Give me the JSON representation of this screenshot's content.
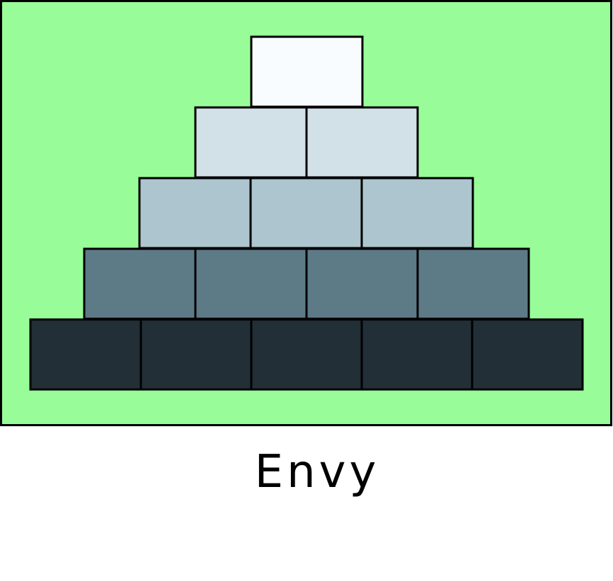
{
  "caption": "Envy",
  "colors": {
    "panel_background": "#98fd98",
    "outline": "#000000",
    "page_background": "#ffffff"
  },
  "pyramid": {
    "rows": [
      {
        "blocks": 1,
        "color": "#f8fcff"
      },
      {
        "blocks": 2,
        "color": "#d2e1e8"
      },
      {
        "blocks": 3,
        "color": "#adc5ce"
      },
      {
        "blocks": 4,
        "color": "#5d7a87"
      },
      {
        "blocks": 5,
        "color": "#222f37"
      }
    ]
  }
}
